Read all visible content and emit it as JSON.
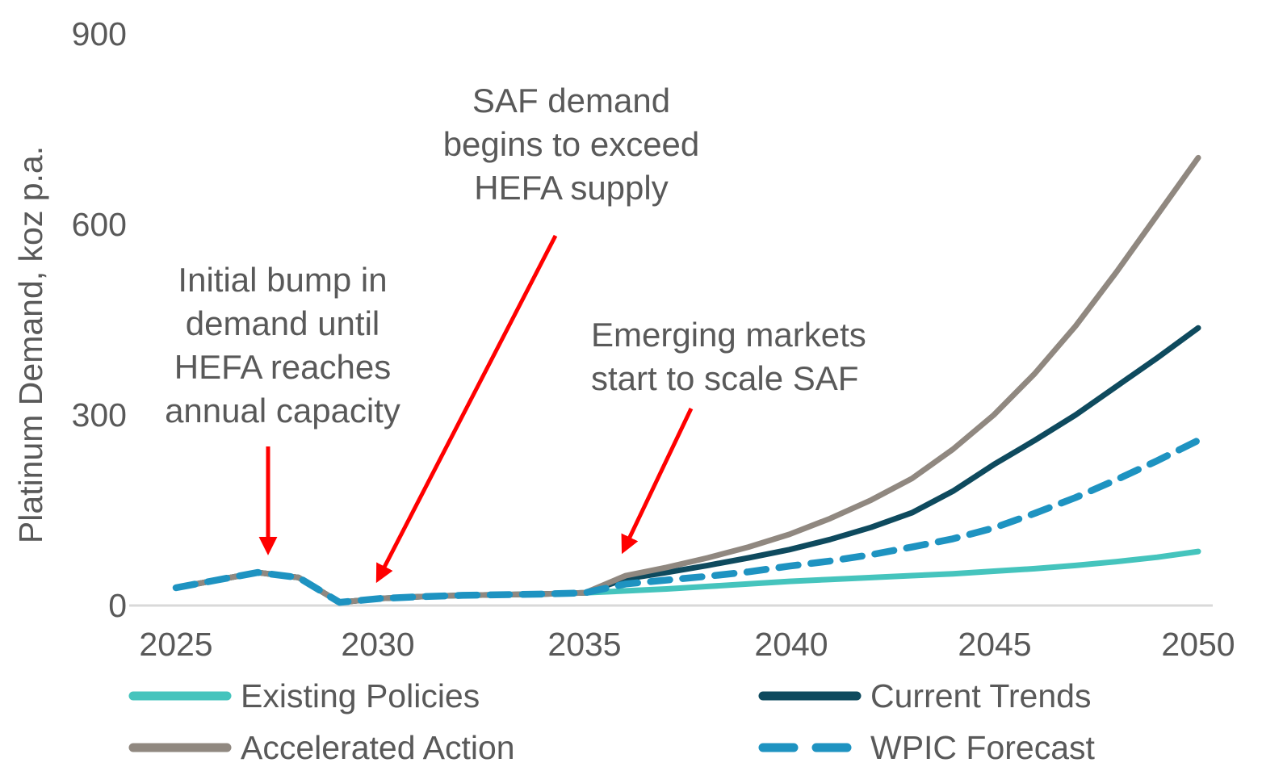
{
  "chart_data": {
    "type": "line",
    "title": "",
    "xlabel": "",
    "ylabel": "Platinum Demand, koz p.a.",
    "ylim": [
      0,
      900
    ],
    "y_ticks": [
      "0",
      "300",
      "600",
      "900"
    ],
    "x_ticks": [
      "2025",
      "2030",
      "2035",
      "2040",
      "2045",
      "2050"
    ],
    "grid": false,
    "legend_position": "bottom",
    "x": [
      2025,
      2026,
      2027,
      2028,
      2029,
      2030,
      2031,
      2032,
      2033,
      2034,
      2035,
      2036,
      2037,
      2038,
      2039,
      2040,
      2041,
      2042,
      2043,
      2044,
      2045,
      2046,
      2047,
      2048,
      2049,
      2050
    ],
    "series": [
      {
        "name": "Existing Policies",
        "color": "#45C4BD",
        "style": "solid",
        "values": [
          28,
          40,
          52,
          44,
          5,
          11,
          14,
          16,
          17,
          18,
          20,
          23,
          26,
          30,
          34,
          38,
          41,
          44,
          47,
          50,
          54,
          58,
          63,
          69,
          76,
          85
        ]
      },
      {
        "name": "Current Trends",
        "color": "#0E4A5E",
        "style": "solid",
        "values": [
          28,
          40,
          52,
          44,
          5,
          11,
          14,
          16,
          17,
          18,
          20,
          42,
          52,
          63,
          75,
          88,
          104,
          123,
          146,
          180,
          222,
          260,
          300,
          345,
          390,
          437
        ]
      },
      {
        "name": "Accelerated Action",
        "color": "#908880",
        "style": "solid",
        "values": [
          28,
          40,
          52,
          44,
          5,
          11,
          14,
          16,
          17,
          18,
          20,
          47,
          60,
          75,
          92,
          112,
          137,
          166,
          200,
          246,
          300,
          365,
          440,
          525,
          615,
          705
        ]
      },
      {
        "name": "WPIC Forecast",
        "color": "#1E93C1",
        "style": "dashed",
        "values": [
          28,
          40,
          52,
          44,
          5,
          11,
          14,
          16,
          17,
          18,
          20,
          34,
          40,
          46,
          53,
          62,
          70,
          80,
          92,
          105,
          122,
          145,
          170,
          198,
          228,
          260
        ]
      }
    ]
  },
  "annotations": {
    "arrow_color": "#FF0000",
    "saf_demand": {
      "lines": [
        "SAF demand",
        "begins to exceed",
        "HEFA supply"
      ]
    },
    "initial_bump": {
      "lines": [
        "Initial bump in",
        "demand until",
        "HEFA reaches",
        "annual capacity"
      ]
    },
    "emerging_markets": {
      "lines": [
        "Emerging markets",
        "start to scale SAF"
      ]
    }
  },
  "colors": {
    "text": "#595959",
    "axis_line": "#D9D9D9",
    "background": "#FFFFFF"
  }
}
